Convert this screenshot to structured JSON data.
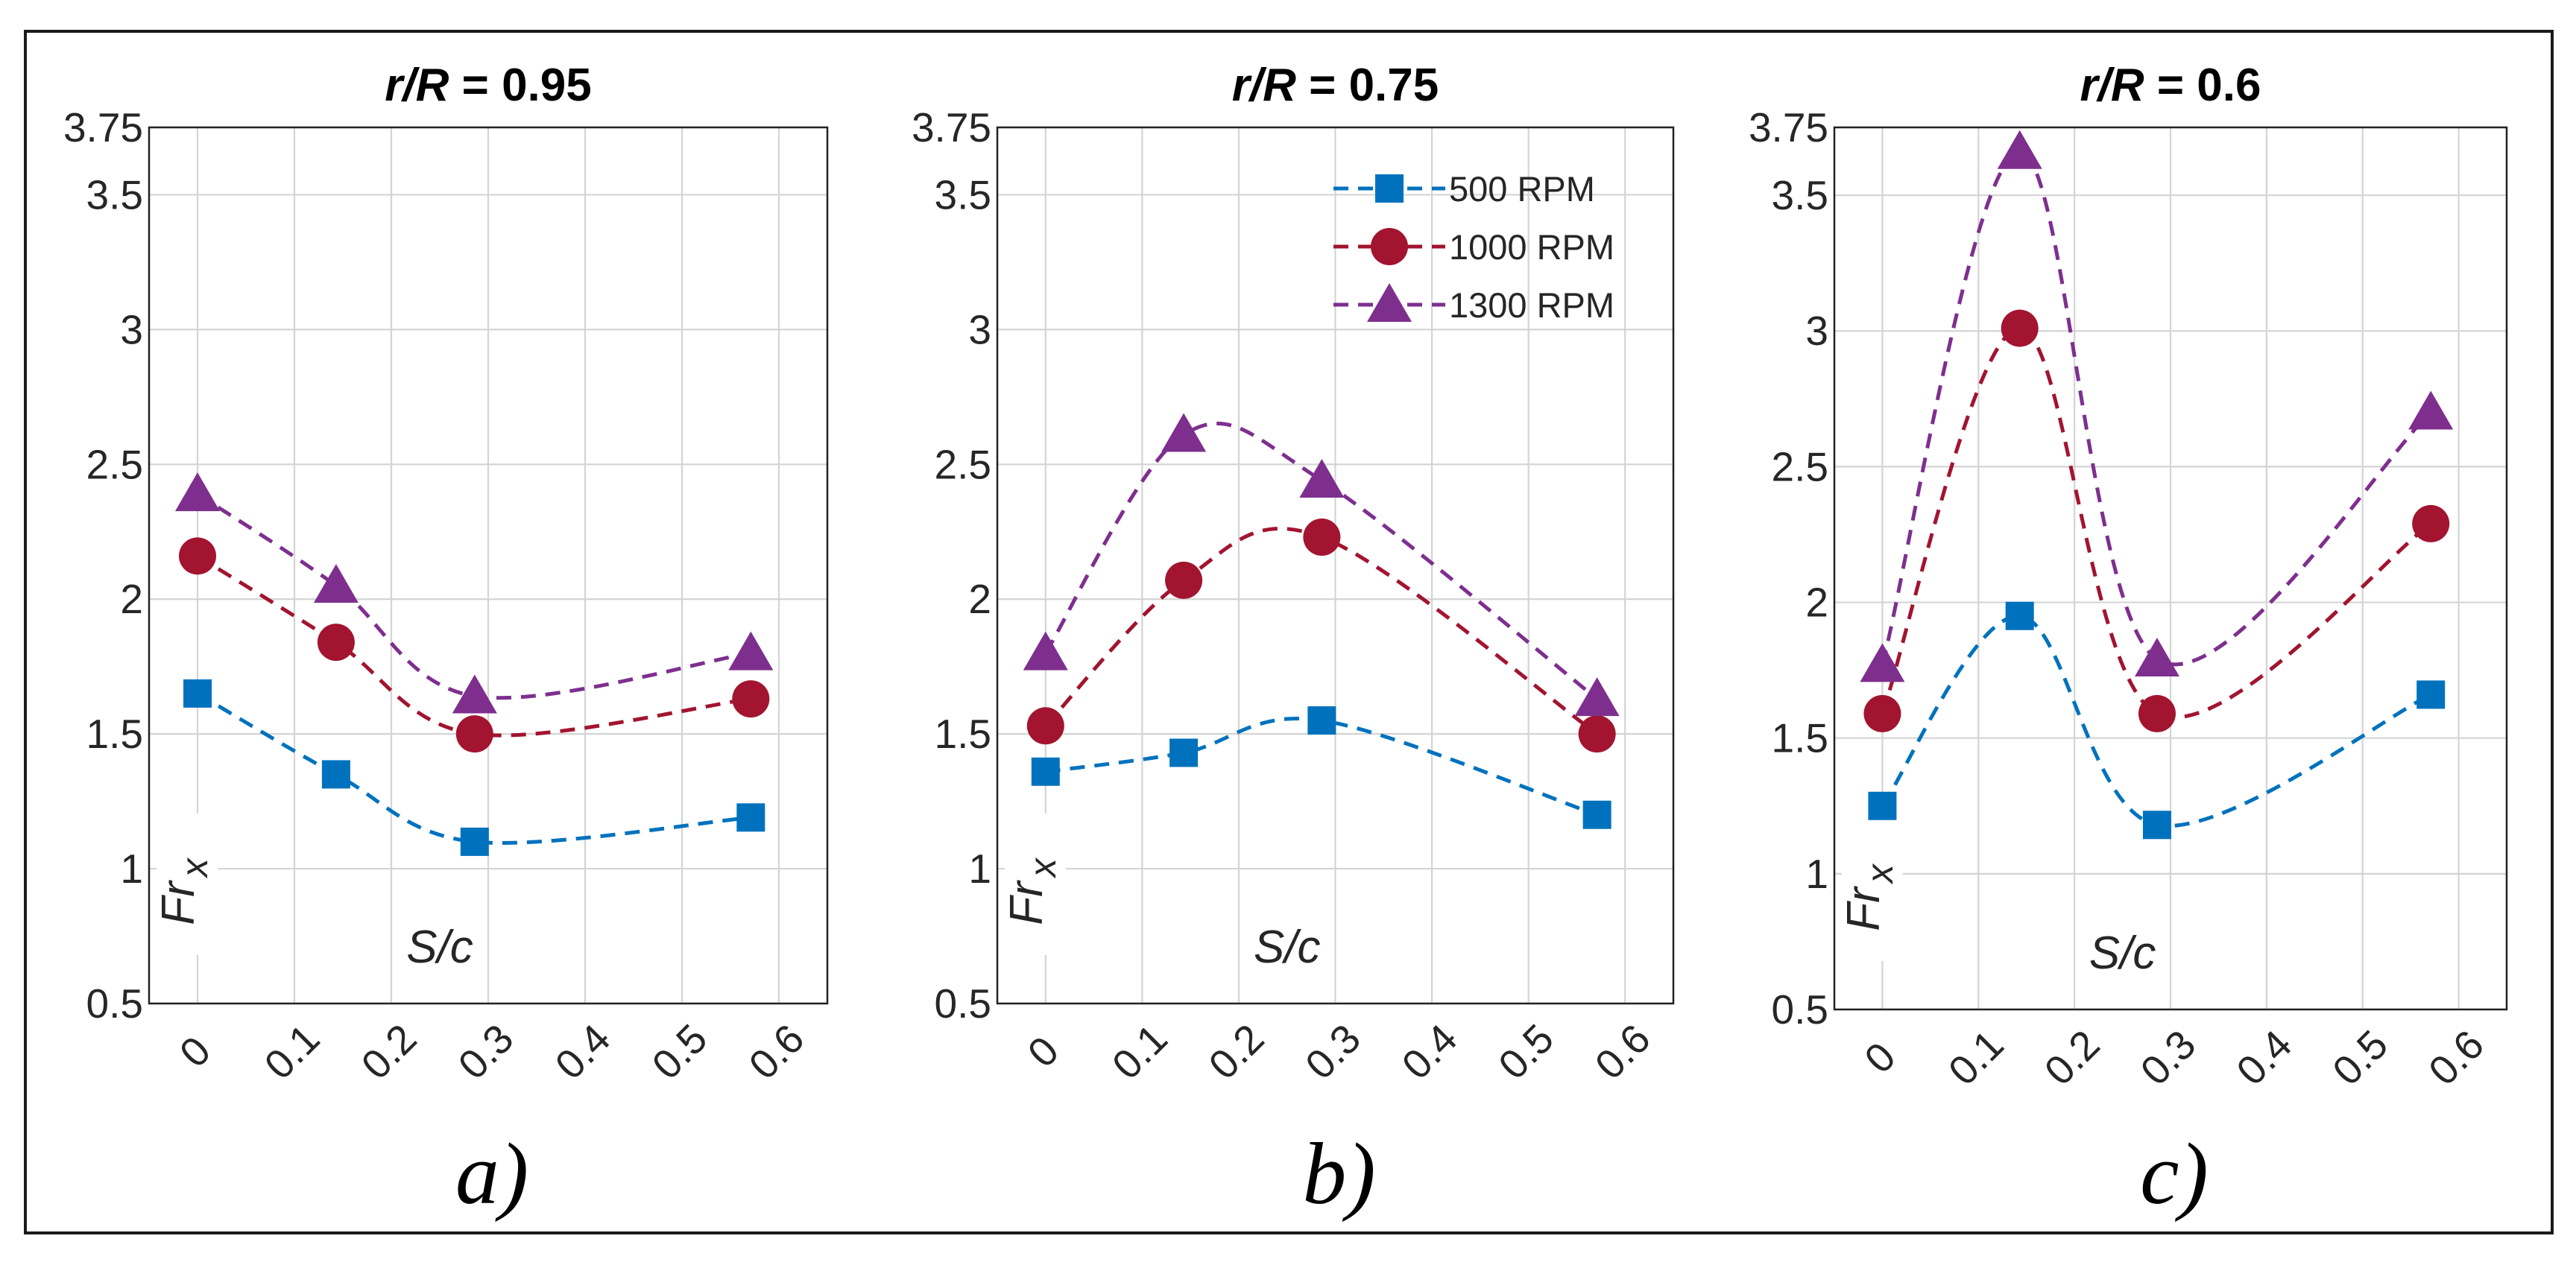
{
  "chart_data": [
    {
      "type": "line",
      "title": "r/R = 0.95",
      "panel_label": "a)",
      "xlabel": "S/c",
      "ylabel": "Fr x",
      "ylabel_main": "Fr",
      "ylabel_sub": "x",
      "xlim": [
        -0.05,
        0.65
      ],
      "ylim": [
        0.5,
        3.75
      ],
      "xticks": [
        "0",
        "0.1",
        "0.2",
        "0.3",
        "0.4",
        "0.5",
        "0.6"
      ],
      "yticks": [
        "0.5",
        "1",
        "1.5",
        "2",
        "2.5",
        "3",
        "3.5",
        "3.75"
      ],
      "x": [
        0,
        0.143,
        0.286,
        0.571
      ],
      "series": [
        {
          "name": "500 RPM",
          "values": [
            1.65,
            1.35,
            1.1,
            1.19
          ],
          "marker": "square",
          "color": "#0072BD"
        },
        {
          "name": "1000 RPM",
          "values": [
            2.16,
            1.84,
            1.5,
            1.63
          ],
          "marker": "circle",
          "color": "#A2142F"
        },
        {
          "name": "1300 RPM",
          "values": [
            2.39,
            2.05,
            1.64,
            1.8
          ],
          "marker": "triangle",
          "color": "#7E2F8E"
        }
      ],
      "grid": true,
      "legend": "none"
    },
    {
      "type": "line",
      "title": "r/R = 0.75",
      "panel_label": "b)",
      "xlabel": "S/c",
      "ylabel": "Fr x",
      "ylabel_main": "Fr",
      "ylabel_sub": "x",
      "xlim": [
        -0.05,
        0.65
      ],
      "ylim": [
        0.5,
        3.75
      ],
      "xticks": [
        "0",
        "0.1",
        "0.2",
        "0.3",
        "0.4",
        "0.5",
        "0.6"
      ],
      "yticks": [
        "0.5",
        "1",
        "1.5",
        "2",
        "2.5",
        "3",
        "3.5",
        "3.75"
      ],
      "x": [
        0,
        0.143,
        0.286,
        0.571
      ],
      "series": [
        {
          "name": "500 RPM",
          "values": [
            1.36,
            1.43,
            1.55,
            1.2
          ],
          "marker": "square",
          "color": "#0072BD"
        },
        {
          "name": "1000 RPM",
          "values": [
            1.53,
            2.07,
            2.23,
            1.5
          ],
          "marker": "circle",
          "color": "#A2142F"
        },
        {
          "name": "1300 RPM",
          "values": [
            1.8,
            2.61,
            2.44,
            1.63
          ],
          "marker": "triangle",
          "color": "#7E2F8E"
        }
      ],
      "grid": true,
      "legend": "top-right"
    },
    {
      "type": "line",
      "title": "r/R = 0.6",
      "panel_label": "c)",
      "xlabel": "S/c",
      "ylabel": "Fr x",
      "ylabel_main": "Fr",
      "ylabel_sub": "x",
      "xlim": [
        -0.05,
        0.65
      ],
      "ylim": [
        0.5,
        3.75
      ],
      "xticks": [
        "0",
        "0.1",
        "0.2",
        "0.3",
        "0.4",
        "0.5",
        "0.6"
      ],
      "yticks": [
        "0.5",
        "1",
        "1.5",
        "2",
        "2.5",
        "3",
        "3.5",
        "3.75"
      ],
      "x": [
        0,
        0.143,
        0.286,
        0.571
      ],
      "series": [
        {
          "name": "500 RPM",
          "values": [
            1.25,
            1.95,
            1.18,
            1.66
          ],
          "marker": "square",
          "color": "#0072BD"
        },
        {
          "name": "1000 RPM",
          "values": [
            1.59,
            3.01,
            1.59,
            2.29
          ],
          "marker": "circle",
          "color": "#A2142F"
        },
        {
          "name": "1300 RPM",
          "values": [
            1.77,
            3.66,
            1.79,
            2.7
          ],
          "marker": "triangle",
          "color": "#7E2F8E"
        }
      ],
      "grid": true,
      "legend": "none"
    }
  ]
}
